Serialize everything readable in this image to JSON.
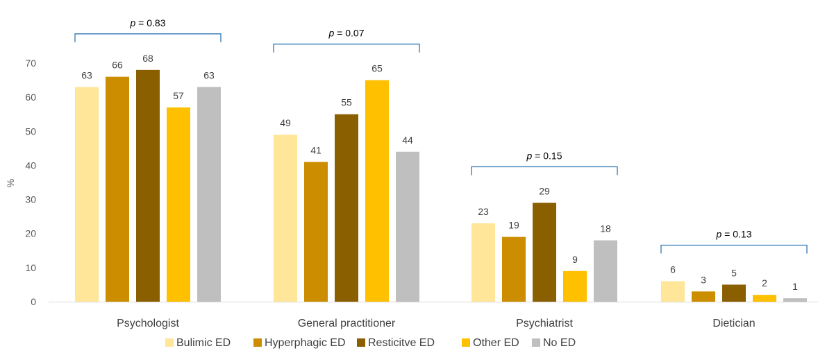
{
  "chart_data": {
    "type": "bar",
    "title": "",
    "xlabel": "",
    "ylabel": "%",
    "ylim": [
      0,
      70
    ],
    "yticks": [
      0,
      10,
      20,
      30,
      40,
      50,
      60,
      70
    ],
    "grid": false,
    "legend_position": "bottom",
    "categories": [
      "Psychologist",
      "General practitioner",
      "Psychiatrist",
      "Dietician"
    ],
    "series": [
      {
        "name": "Bulimic ED",
        "color": "#FFE699",
        "values": [
          63,
          49,
          23,
          6
        ]
      },
      {
        "name": "Hyperphagic ED",
        "color": "#CC8E00",
        "values": [
          66,
          41,
          19,
          3
        ]
      },
      {
        "name": "Resticitve ED",
        "color": "#8A5F00",
        "values": [
          68,
          55,
          29,
          5
        ]
      },
      {
        "name": "Other ED",
        "color": "#FFC000",
        "values": [
          57,
          65,
          9,
          2
        ]
      },
      {
        "name": "No ED",
        "color": "#BFBFBF",
        "values": [
          63,
          44,
          18,
          1
        ]
      }
    ],
    "annotations": [
      {
        "category": "Psychologist",
        "p_symbol": "p",
        "text": " = 0.83"
      },
      {
        "category": "General practitioner",
        "p_symbol": "p",
        "text": " = 0.07"
      },
      {
        "category": "Psychiatrist",
        "p_symbol": "p",
        "text": " = 0.15"
      },
      {
        "category": "Dietician",
        "p_symbol": "p",
        "text": " = 0.13"
      }
    ],
    "bracket_color": "#2E75B6"
  }
}
